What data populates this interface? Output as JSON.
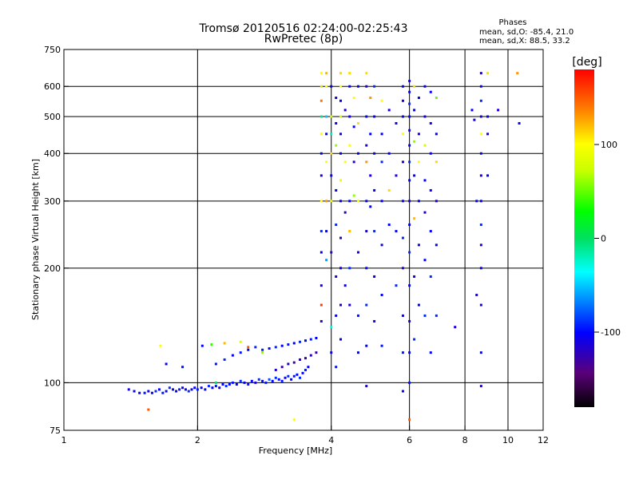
{
  "chart_data": {
    "type": "scatter",
    "title": "Tromsø 20120516 02:24:00-02:25:43",
    "subtitle": "RwPretec (8p)",
    "xlabel": "Frequency [MHz]",
    "ylabel": "Stationary phase Virtual Height [km]",
    "x_scale": "log",
    "y_scale": "log",
    "xlim": [
      1,
      12
    ],
    "ylim": [
      75,
      750
    ],
    "x_ticks": [
      1,
      2,
      4,
      6,
      8,
      10,
      12
    ],
    "y_ticks": [
      75,
      100,
      200,
      300,
      400,
      500,
      600,
      750
    ],
    "x_gridlines": [
      2,
      4,
      6,
      8,
      10
    ],
    "y_gridlines": [
      100,
      200,
      300,
      400,
      500,
      600
    ],
    "phases": {
      "title": "Phases",
      "line1": "mean, sd,O: -85.4, 21.0",
      "line2": "mean, sd,X:  88.5, 33.2"
    },
    "colorbar": {
      "label": "[deg]",
      "range": [
        -180,
        180
      ],
      "ticks": [
        {
          "value": 100,
          "label": "100"
        },
        {
          "value": 0,
          "label": "0"
        },
        {
          "value": -100,
          "label": "-100"
        }
      ]
    },
    "points": [
      [
        1.4,
        96,
        -110
      ],
      [
        1.44,
        95,
        -105
      ],
      [
        1.48,
        94,
        -100
      ],
      [
        1.52,
        94,
        -95
      ],
      [
        1.55,
        95,
        -110
      ],
      [
        1.58,
        94,
        -100
      ],
      [
        1.61,
        95,
        -90
      ],
      [
        1.64,
        96,
        -105
      ],
      [
        1.67,
        94,
        -95
      ],
      [
        1.7,
        95,
        -100
      ],
      [
        1.73,
        97,
        -90
      ],
      [
        1.76,
        96,
        -110
      ],
      [
        1.79,
        95,
        -100
      ],
      [
        1.82,
        96,
        -95
      ],
      [
        1.85,
        97,
        -105
      ],
      [
        1.88,
        96,
        -100
      ],
      [
        1.91,
        95,
        -90
      ],
      [
        1.94,
        96,
        -110
      ],
      [
        1.97,
        97,
        -100
      ],
      [
        2.0,
        96,
        -95
      ],
      [
        2.04,
        97,
        -100
      ],
      [
        2.08,
        96,
        -105
      ],
      [
        2.12,
        98,
        -90
      ],
      [
        2.16,
        97,
        -100
      ],
      [
        2.2,
        98,
        -95
      ],
      [
        2.24,
        97,
        -110
      ],
      [
        2.28,
        99,
        -100
      ],
      [
        2.32,
        98,
        -90
      ],
      [
        2.36,
        99,
        -100
      ],
      [
        2.4,
        100,
        -95
      ],
      [
        2.45,
        99,
        -105
      ],
      [
        2.5,
        101,
        -90
      ],
      [
        2.55,
        100,
        -100
      ],
      [
        2.6,
        99,
        -95
      ],
      [
        2.65,
        101,
        -100
      ],
      [
        2.7,
        100,
        -110
      ],
      [
        2.75,
        102,
        -90
      ],
      [
        2.8,
        101,
        -100
      ],
      [
        2.85,
        100,
        -95
      ],
      [
        2.9,
        102,
        -80
      ],
      [
        2.95,
        101,
        -100
      ],
      [
        3.0,
        103,
        -90
      ],
      [
        3.05,
        102,
        -100
      ],
      [
        3.1,
        101,
        -95
      ],
      [
        3.15,
        103,
        -110
      ],
      [
        3.2,
        104,
        -90
      ],
      [
        3.25,
        102,
        -100
      ],
      [
        3.3,
        104,
        -95
      ],
      [
        3.35,
        105,
        -100
      ],
      [
        3.4,
        103,
        -90
      ],
      [
        3.45,
        106,
        -100
      ],
      [
        3.5,
        108,
        -95
      ],
      [
        3.55,
        110,
        -100
      ],
      [
        2.2,
        112,
        -95
      ],
      [
        2.3,
        115,
        -90
      ],
      [
        2.4,
        118,
        -100
      ],
      [
        2.5,
        120,
        -95
      ],
      [
        2.6,
        122,
        -100
      ],
      [
        2.7,
        124,
        -90
      ],
      [
        2.8,
        122,
        -95
      ],
      [
        2.9,
        123,
        -100
      ],
      [
        3.0,
        124,
        -90
      ],
      [
        3.1,
        125,
        -100
      ],
      [
        3.2,
        126,
        -95
      ],
      [
        3.3,
        127,
        -100
      ],
      [
        3.4,
        128,
        -90
      ],
      [
        3.5,
        129,
        -100
      ],
      [
        3.6,
        130,
        -95
      ],
      [
        3.7,
        131,
        -100
      ],
      [
        3.0,
        108,
        -120
      ],
      [
        3.1,
        110,
        -130
      ],
      [
        3.2,
        112,
        -120
      ],
      [
        3.3,
        113,
        -130
      ],
      [
        3.4,
        115,
        -120
      ],
      [
        3.5,
        116,
        -125
      ],
      [
        3.6,
        118,
        -120
      ],
      [
        3.7,
        120,
        -130
      ],
      [
        1.7,
        112,
        -100
      ],
      [
        1.85,
        110,
        -95
      ],
      [
        2.05,
        125,
        -100
      ],
      [
        2.15,
        126,
        40
      ],
      [
        2.3,
        127,
        120
      ],
      [
        2.5,
        128,
        80
      ],
      [
        2.6,
        124,
        150
      ],
      [
        2.8,
        120,
        60
      ],
      [
        2.2,
        100,
        0
      ],
      [
        1.55,
        85,
        150
      ],
      [
        1.65,
        125,
        100
      ],
      [
        3.3,
        80,
        100
      ],
      [
        3.8,
        650,
        100
      ],
      [
        3.8,
        600,
        110
      ],
      [
        3.8,
        550,
        140
      ],
      [
        3.8,
        500,
        -10
      ],
      [
        3.8,
        450,
        95
      ],
      [
        3.8,
        400,
        -100
      ],
      [
        3.8,
        350,
        -120
      ],
      [
        3.8,
        300,
        100
      ],
      [
        3.8,
        250,
        -90
      ],
      [
        3.8,
        220,
        -100
      ],
      [
        3.8,
        180,
        -110
      ],
      [
        3.8,
        160,
        160
      ],
      [
        3.8,
        145,
        -120
      ],
      [
        3.9,
        650,
        120
      ],
      [
        3.9,
        600,
        100
      ],
      [
        3.9,
        500,
        -50
      ],
      [
        3.9,
        450,
        -110
      ],
      [
        3.9,
        380,
        100
      ],
      [
        3.9,
        300,
        130
      ],
      [
        3.9,
        250,
        -100
      ],
      [
        3.9,
        210,
        -60
      ],
      [
        4.0,
        600,
        -100
      ],
      [
        4.0,
        500,
        80
      ],
      [
        4.0,
        450,
        -20
      ],
      [
        4.0,
        400,
        110
      ],
      [
        4.0,
        350,
        -100
      ],
      [
        4.0,
        300,
        90
      ],
      [
        4.0,
        220,
        -120
      ],
      [
        4.0,
        140,
        -30
      ],
      [
        4.0,
        120,
        -100
      ],
      [
        4.1,
        560,
        -110
      ],
      [
        4.1,
        480,
        -100
      ],
      [
        4.1,
        420,
        60
      ],
      [
        4.1,
        320,
        -100
      ],
      [
        4.1,
        260,
        -90
      ],
      [
        4.1,
        190,
        -110
      ],
      [
        4.1,
        150,
        -100
      ],
      [
        4.1,
        110,
        -95
      ],
      [
        4.2,
        650,
        110
      ],
      [
        4.2,
        600,
        100
      ],
      [
        4.2,
        550,
        -100
      ],
      [
        4.2,
        500,
        80
      ],
      [
        4.2,
        450,
        -110
      ],
      [
        4.2,
        400,
        -100
      ],
      [
        4.2,
        340,
        90
      ],
      [
        4.2,
        300,
        -100
      ],
      [
        4.2,
        240,
        -120
      ],
      [
        4.2,
        200,
        -100
      ],
      [
        4.2,
        160,
        -110
      ],
      [
        4.2,
        130,
        -100
      ],
      [
        4.3,
        520,
        -110
      ],
      [
        4.3,
        380,
        100
      ],
      [
        4.3,
        280,
        -120
      ],
      [
        4.3,
        180,
        -100
      ],
      [
        4.4,
        650,
        110
      ],
      [
        4.4,
        600,
        -100
      ],
      [
        4.4,
        500,
        -110
      ],
      [
        4.4,
        420,
        100
      ],
      [
        4.4,
        300,
        -100
      ],
      [
        4.4,
        250,
        120
      ],
      [
        4.4,
        200,
        -90
      ],
      [
        4.4,
        160,
        -110
      ],
      [
        4.5,
        560,
        100
      ],
      [
        4.5,
        470,
        -100
      ],
      [
        4.5,
        380,
        -120
      ],
      [
        4.5,
        310,
        60
      ],
      [
        4.6,
        600,
        -100
      ],
      [
        4.6,
        480,
        110
      ],
      [
        4.6,
        400,
        -100
      ],
      [
        4.6,
        300,
        90
      ],
      [
        4.6,
        220,
        -110
      ],
      [
        4.6,
        150,
        -95
      ],
      [
        4.6,
        120,
        -100
      ],
      [
        4.8,
        650,
        110
      ],
      [
        4.8,
        600,
        -110
      ],
      [
        4.8,
        500,
        -100
      ],
      [
        4.8,
        420,
        -120
      ],
      [
        4.8,
        380,
        130
      ],
      [
        4.8,
        300,
        -100
      ],
      [
        4.8,
        250,
        -110
      ],
      [
        4.8,
        200,
        -100
      ],
      [
        4.8,
        160,
        -90
      ],
      [
        4.8,
        125,
        -100
      ],
      [
        4.8,
        98,
        -110
      ],
      [
        4.9,
        560,
        130
      ],
      [
        4.9,
        450,
        -100
      ],
      [
        4.9,
        350,
        -110
      ],
      [
        4.9,
        290,
        -100
      ],
      [
        5.0,
        600,
        -90
      ],
      [
        5.0,
        500,
        -100
      ],
      [
        5.0,
        400,
        -110
      ],
      [
        5.0,
        320,
        -100
      ],
      [
        5.0,
        250,
        -90
      ],
      [
        5.0,
        190,
        -100
      ],
      [
        5.0,
        145,
        -110
      ],
      [
        5.2,
        550,
        100
      ],
      [
        5.2,
        450,
        -100
      ],
      [
        5.2,
        380,
        -90
      ],
      [
        5.2,
        300,
        -100
      ],
      [
        5.2,
        230,
        -110
      ],
      [
        5.2,
        170,
        -100
      ],
      [
        5.2,
        125,
        -95
      ],
      [
        5.4,
        520,
        -110
      ],
      [
        5.4,
        400,
        -100
      ],
      [
        5.4,
        320,
        110
      ],
      [
        5.4,
        260,
        -100
      ],
      [
        5.6,
        480,
        -100
      ],
      [
        5.6,
        350,
        -110
      ],
      [
        5.6,
        250,
        -100
      ],
      [
        5.6,
        180,
        -90
      ],
      [
        5.8,
        600,
        -100
      ],
      [
        5.8,
        550,
        -110
      ],
      [
        5.8,
        500,
        -100
      ],
      [
        5.8,
        450,
        100
      ],
      [
        5.8,
        380,
        -110
      ],
      [
        5.8,
        300,
        -100
      ],
      [
        5.8,
        240,
        -90
      ],
      [
        5.8,
        200,
        -110
      ],
      [
        5.8,
        150,
        -100
      ],
      [
        5.8,
        120,
        -95
      ],
      [
        5.8,
        95,
        -100
      ],
      [
        6.0,
        620,
        -110
      ],
      [
        6.0,
        580,
        -100
      ],
      [
        6.0,
        540,
        -90
      ],
      [
        6.0,
        500,
        -100
      ],
      [
        6.0,
        460,
        -110
      ],
      [
        6.0,
        420,
        -100
      ],
      [
        6.0,
        380,
        -90
      ],
      [
        6.0,
        340,
        -100
      ],
      [
        6.0,
        300,
        -110
      ],
      [
        6.0,
        260,
        -100
      ],
      [
        6.0,
        220,
        -90
      ],
      [
        6.0,
        180,
        -100
      ],
      [
        6.0,
        145,
        -110
      ],
      [
        6.0,
        120,
        -100
      ],
      [
        6.0,
        100,
        -95
      ],
      [
        6.0,
        80,
        150
      ],
      [
        6.15,
        600,
        110
      ],
      [
        6.15,
        520,
        -100
      ],
      [
        6.15,
        430,
        60
      ],
      [
        6.15,
        350,
        -100
      ],
      [
        6.15,
        270,
        120
      ],
      [
        6.15,
        190,
        -110
      ],
      [
        6.15,
        130,
        -90
      ],
      [
        6.3,
        560,
        -100
      ],
      [
        6.3,
        450,
        -110
      ],
      [
        6.3,
        380,
        100
      ],
      [
        6.3,
        300,
        -100
      ],
      [
        6.3,
        230,
        -110
      ],
      [
        6.3,
        160,
        -100
      ],
      [
        6.5,
        600,
        -100
      ],
      [
        6.5,
        500,
        -110
      ],
      [
        6.5,
        420,
        80
      ],
      [
        6.5,
        340,
        -100
      ],
      [
        6.5,
        280,
        -110
      ],
      [
        6.5,
        210,
        -100
      ],
      [
        6.5,
        150,
        -90
      ],
      [
        6.7,
        580,
        -100
      ],
      [
        6.7,
        480,
        -110
      ],
      [
        6.7,
        400,
        -100
      ],
      [
        6.7,
        320,
        -110
      ],
      [
        6.7,
        250,
        -100
      ],
      [
        6.7,
        190,
        -90
      ],
      [
        6.7,
        120,
        -100
      ],
      [
        6.9,
        560,
        50
      ],
      [
        6.9,
        450,
        -100
      ],
      [
        6.9,
        380,
        110
      ],
      [
        6.9,
        300,
        -110
      ],
      [
        6.9,
        230,
        -100
      ],
      [
        6.9,
        150,
        -90
      ],
      [
        7.6,
        140,
        -110
      ],
      [
        8.3,
        520,
        -100
      ],
      [
        8.4,
        490,
        -110
      ],
      [
        8.5,
        300,
        -100
      ],
      [
        8.5,
        170,
        -110
      ],
      [
        8.7,
        650,
        -110
      ],
      [
        8.7,
        600,
        -100
      ],
      [
        8.7,
        550,
        -90
      ],
      [
        8.7,
        500,
        -110
      ],
      [
        8.7,
        450,
        100
      ],
      [
        8.7,
        400,
        -100
      ],
      [
        8.7,
        350,
        -110
      ],
      [
        8.7,
        300,
        -100
      ],
      [
        8.7,
        260,
        -90
      ],
      [
        8.7,
        230,
        -110
      ],
      [
        8.7,
        200,
        -100
      ],
      [
        8.7,
        160,
        -110
      ],
      [
        8.7,
        120,
        -100
      ],
      [
        8.7,
        98,
        -110
      ],
      [
        9.0,
        650,
        110
      ],
      [
        9.0,
        500,
        -100
      ],
      [
        9.0,
        450,
        -110
      ],
      [
        9.0,
        350,
        -100
      ],
      [
        9.5,
        520,
        -110
      ],
      [
        10.5,
        650,
        130
      ],
      [
        10.6,
        480,
        -100
      ]
    ]
  }
}
